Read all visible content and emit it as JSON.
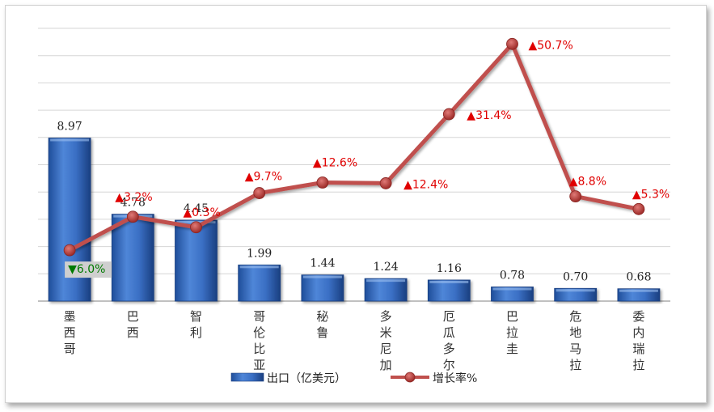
{
  "chart_data": {
    "type": "bar+line",
    "categories": [
      "墨西哥",
      "巴西",
      "智利",
      "哥伦比亚",
      "秘鲁",
      "多米尼加",
      "厄瓜多尔",
      "巴拉圭",
      "危地马拉",
      "委内瑞拉"
    ],
    "series": [
      {
        "name": "出口（亿美元）",
        "type": "bar",
        "axis": "left",
        "values": [
          8.97,
          4.78,
          4.45,
          1.99,
          1.44,
          1.24,
          1.16,
          0.78,
          0.7,
          0.68
        ],
        "labels": [
          "8.97",
          "4.78",
          "4.45",
          "1.99",
          "1.44",
          "1.24",
          "1.16",
          "0.78",
          "0.70",
          "0.68"
        ],
        "color": "#3a6fc4"
      },
      {
        "name": "增长率%",
        "type": "line",
        "axis": "right",
        "values": [
          -6.0,
          3.2,
          0.3,
          9.7,
          12.6,
          12.4,
          31.4,
          50.7,
          8.8,
          5.3
        ],
        "labels": [
          "▼6.0%",
          "▲3.2%",
          "▲0.3%",
          "▲9.7%",
          "▲12.6%",
          "▲12.4%",
          "▲31.4%",
          "▲50.7%",
          "▲8.8%",
          "▲5.3%"
        ],
        "color": "#c0504d"
      }
    ],
    "ylim": [
      0,
      15
    ],
    "y2lim": [
      -20,
      55
    ],
    "grid": true,
    "legend": "bottom",
    "colors": {
      "up": "#e00000",
      "down": "#007a00",
      "down_label_bg": "#cfcfcf"
    }
  }
}
